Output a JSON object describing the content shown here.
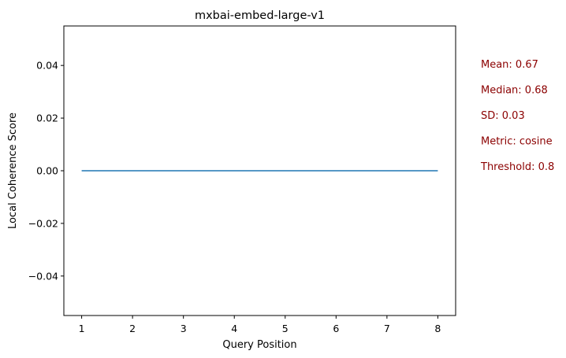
{
  "chart_data": {
    "type": "line",
    "title": "mxbai-embed-large-v1",
    "xlabel": "Query Position",
    "ylabel": "Local Coherence Score",
    "xlim": [
      0.65,
      8.35
    ],
    "ylim": [
      -0.055,
      0.055
    ],
    "xticks": [
      1,
      2,
      3,
      4,
      5,
      6,
      7,
      8
    ],
    "xtick_labels": [
      "1",
      "2",
      "3",
      "4",
      "5",
      "6",
      "7",
      "8"
    ],
    "yticks": [
      -0.04,
      -0.02,
      0.0,
      0.02,
      0.04
    ],
    "ytick_labels": [
      "−0.04",
      "−0.02",
      "0.00",
      "0.02",
      "0.04"
    ],
    "grid": false,
    "series": [
      {
        "color": "#1f77b4",
        "x": [
          1,
          2,
          3,
          4,
          5,
          6,
          7,
          8
        ],
        "y": [
          0,
          0,
          0,
          0,
          0,
          0,
          0,
          0
        ]
      }
    ],
    "annotations": [
      "Mean: 0.67",
      "Median: 0.68",
      "SD: 0.03",
      "Metric: cosine",
      "Threshold: 0.8"
    ],
    "annotation_color": "#8b0000"
  }
}
